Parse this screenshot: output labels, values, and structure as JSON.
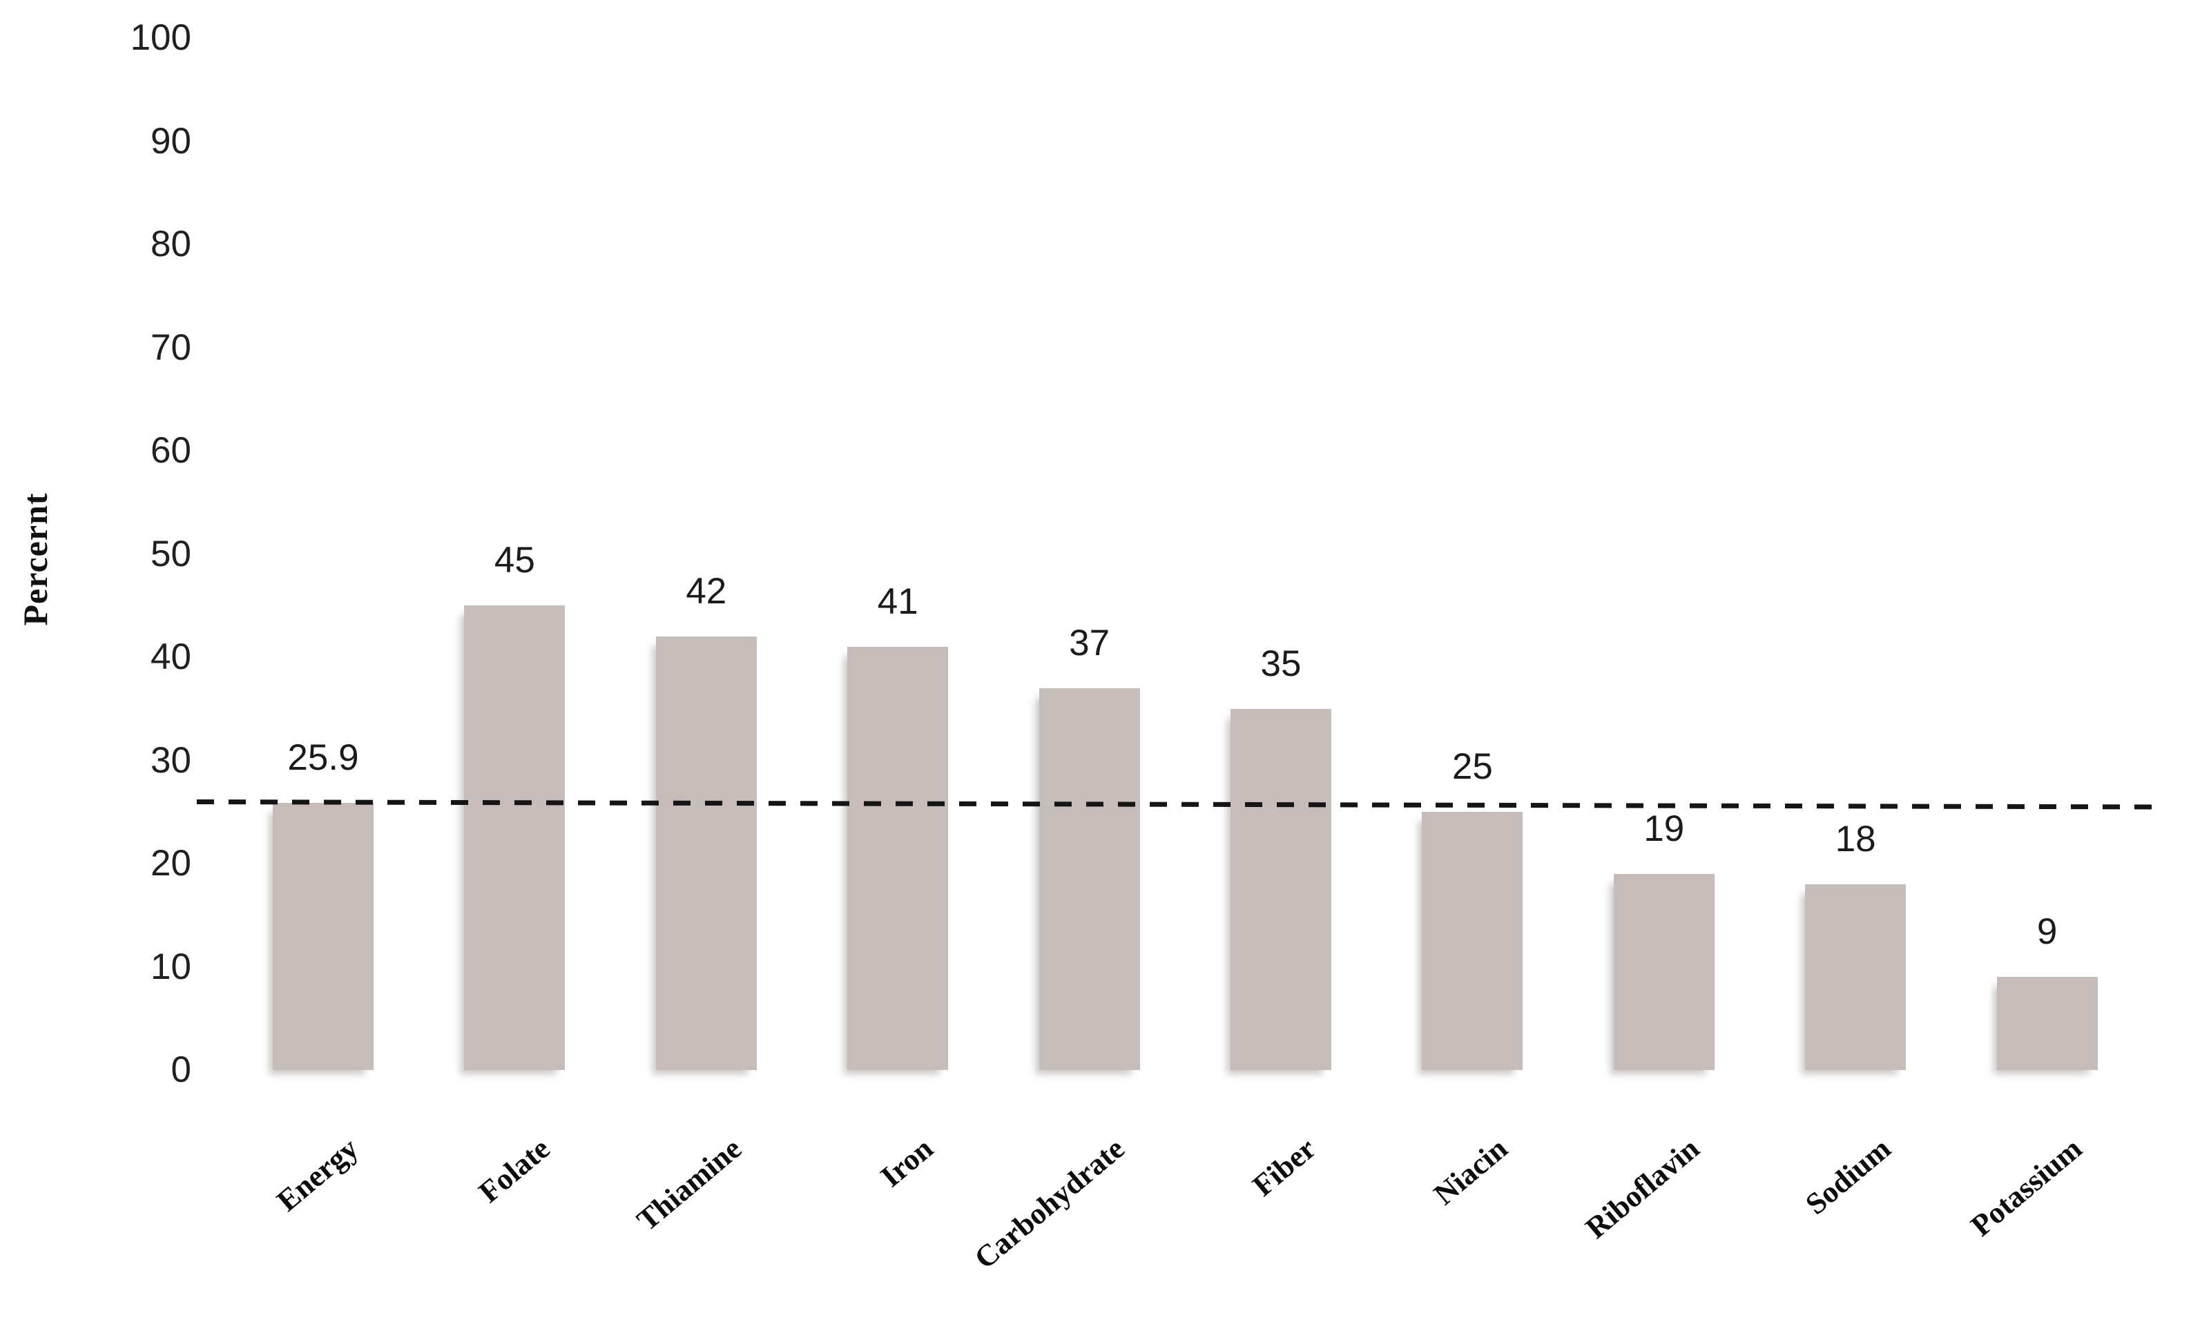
{
  "chart_data": {
    "type": "bar",
    "title": "",
    "xlabel": "",
    "ylabel": "Percernt",
    "categories": [
      "Energy",
      "Folate",
      "Thiamine",
      "Iron",
      "Carbohydrate",
      "Fiber",
      "Niacin",
      "Riboflavin",
      "Sodium",
      "Potassium"
    ],
    "values": [
      25.9,
      45,
      42,
      41,
      37,
      35,
      25,
      19,
      18,
      9
    ],
    "data_labels": [
      "25.9",
      "45",
      "42",
      "41",
      "37",
      "35",
      "25",
      "19",
      "18",
      "9"
    ],
    "y_ticks": [
      100,
      90,
      80,
      70,
      60,
      50,
      40,
      30,
      20,
      10,
      0
    ],
    "ylim": [
      0,
      100
    ],
    "grid": false,
    "legend": "none",
    "reference_line": {
      "value": 25.9,
      "style": "dashed",
      "color": "#151515"
    },
    "colors": {
      "bar": "#c6bcb9",
      "bar_shadow": "#d8d1cf",
      "dash_line": "#151515",
      "tick_text": "#202020",
      "label_text": "#0d0d0d",
      "background": "#ffffff"
    }
  }
}
